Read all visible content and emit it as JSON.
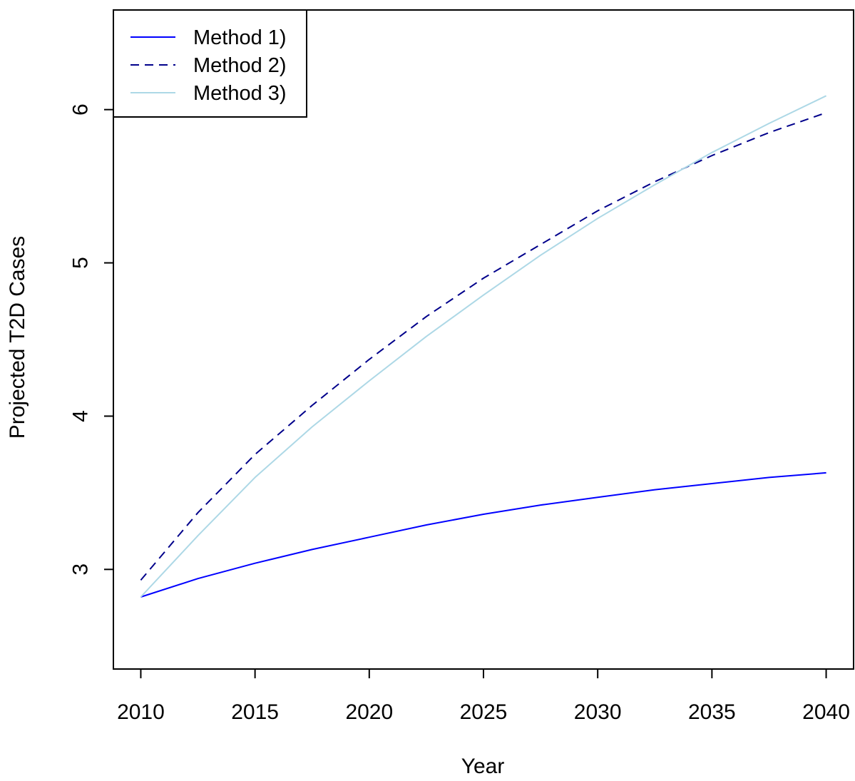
{
  "chart_data": {
    "type": "line",
    "title": "",
    "xlabel": "Year",
    "ylabel": "Projected T2D Cases",
    "xlim": [
      2008.8,
      2041.2
    ],
    "ylim": [
      2.35,
      6.65
    ],
    "xticks": [
      2010,
      2015,
      2020,
      2025,
      2030,
      2035,
      2040
    ],
    "yticks": [
      3,
      4,
      5,
      6
    ],
    "grid": false,
    "legend_position": "top-left",
    "x": [
      2010,
      2012.5,
      2015,
      2017.5,
      2020,
      2022.5,
      2025,
      2027.5,
      2030,
      2032.5,
      2035,
      2037.5,
      2040
    ],
    "series": [
      {
        "name": "Method 1)",
        "color": "#0000ff",
        "style": "solid",
        "values": [
          2.82,
          2.94,
          3.04,
          3.13,
          3.21,
          3.29,
          3.36,
          3.42,
          3.47,
          3.52,
          3.56,
          3.6,
          3.63
        ]
      },
      {
        "name": "Method 2)",
        "color": "#00008b",
        "style": "dashed",
        "values": [
          2.93,
          3.37,
          3.75,
          4.07,
          4.37,
          4.65,
          4.9,
          5.12,
          5.34,
          5.53,
          5.7,
          5.85,
          5.98
        ]
      },
      {
        "name": "Method 3)",
        "color": "#add8e6",
        "style": "solid",
        "values": [
          2.82,
          3.22,
          3.6,
          3.93,
          4.23,
          4.52,
          4.79,
          5.05,
          5.29,
          5.51,
          5.72,
          5.91,
          6.09
        ]
      }
    ]
  }
}
